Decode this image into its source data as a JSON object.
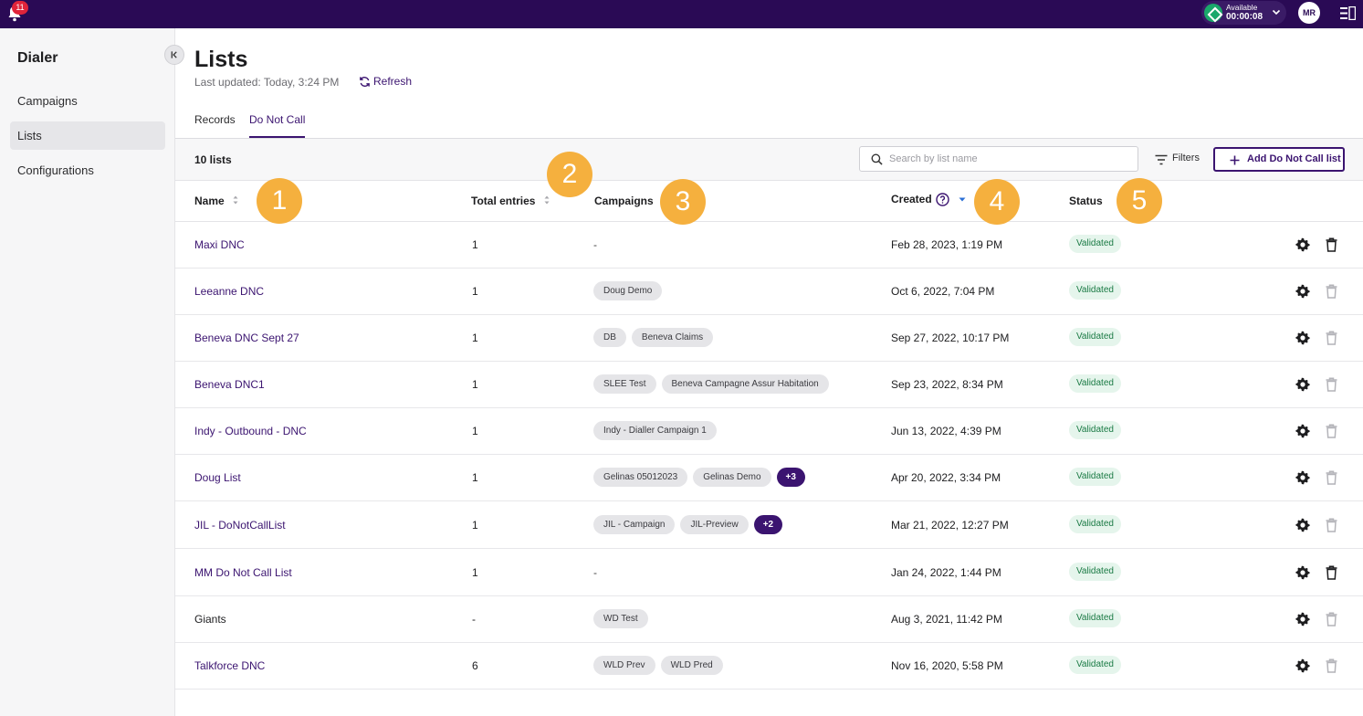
{
  "topbar": {
    "notification_count": "11",
    "availability_label": "Available",
    "availability_timer": "00:00:08",
    "user_initials": "MR"
  },
  "sidebar": {
    "title": "Dialer",
    "items": [
      {
        "label": "Campaigns"
      },
      {
        "label": "Lists"
      },
      {
        "label": "Configurations"
      }
    ]
  },
  "header": {
    "title": "Lists",
    "last_updated": "Last updated: Today, 3:24 PM",
    "refresh_label": "Refresh"
  },
  "tabs": [
    {
      "label": "Records"
    },
    {
      "label": "Do Not Call"
    }
  ],
  "toolbar": {
    "count": "10 lists",
    "search_placeholder": "Search by list name",
    "filters_label": "Filters",
    "add_label": "Add Do Not Call list"
  },
  "columns": {
    "name": "Name",
    "total": "Total entries",
    "campaigns": "Campaigns",
    "created": "Created",
    "status": "Status"
  },
  "markers": [
    "1",
    "2",
    "3",
    "4",
    "5"
  ],
  "rows": [
    {
      "name": "Maxi DNC",
      "total": "1",
      "campaigns_text": "-",
      "campaigns": [],
      "created": "Feb 28, 2023, 1:19 PM",
      "status": "Validated"
    },
    {
      "name": "Leeanne DNC",
      "total": "1",
      "campaigns": [
        "Doug Demo"
      ],
      "created": "Oct 6, 2022, 7:04 PM",
      "status": "Validated"
    },
    {
      "name": "Beneva DNC Sept 27",
      "total": "1",
      "campaigns": [
        "DB",
        "Beneva Claims"
      ],
      "created": "Sep 27, 2022, 10:17 PM",
      "status": "Validated"
    },
    {
      "name": "Beneva DNC1",
      "total": "1",
      "campaigns": [
        "SLEE Test",
        "Beneva Campagne Assur Habitation"
      ],
      "created": "Sep 23, 2022, 8:34 PM",
      "status": "Validated"
    },
    {
      "name": "Indy - Outbound - DNC",
      "total": "1",
      "campaigns": [
        "Indy - Dialler Campaign 1"
      ],
      "created": "Jun 13, 2022, 4:39 PM",
      "status": "Validated"
    },
    {
      "name": "Doug List",
      "total": "1",
      "campaigns": [
        "Gelinas 05012023",
        "Gelinas Demo"
      ],
      "more": "+3",
      "created": "Apr 20, 2022, 3:34 PM",
      "status": "Validated"
    },
    {
      "name": "JIL - DoNotCallList",
      "total": "1",
      "campaigns": [
        "JIL - Campaign",
        "JIL-Preview"
      ],
      "more": "+2",
      "created": "Mar 21, 2022, 12:27 PM",
      "status": "Validated"
    },
    {
      "name": "MM Do Not Call List",
      "total": "1",
      "campaigns_text": "-",
      "campaigns": [],
      "created": "Jan 24, 2022, 1:44 PM",
      "status": "Validated"
    },
    {
      "name": "Giants",
      "total": "-",
      "campaigns": [
        "WD Test"
      ],
      "created": "Aug 3, 2021, 11:42 PM",
      "status": "Validated"
    },
    {
      "name": "Talkforce DNC",
      "total": "6",
      "campaigns": [
        "WLD Prev",
        "WLD Pred"
      ],
      "created": "Nov 16, 2020, 5:58 PM",
      "status": "Validated"
    }
  ],
  "colors": {
    "topbar": "#2a0a55",
    "accent": "#3b1470",
    "marker": "#f5b03e",
    "validated_bg": "#e5f5ec",
    "validated_text": "#1a7a44"
  }
}
